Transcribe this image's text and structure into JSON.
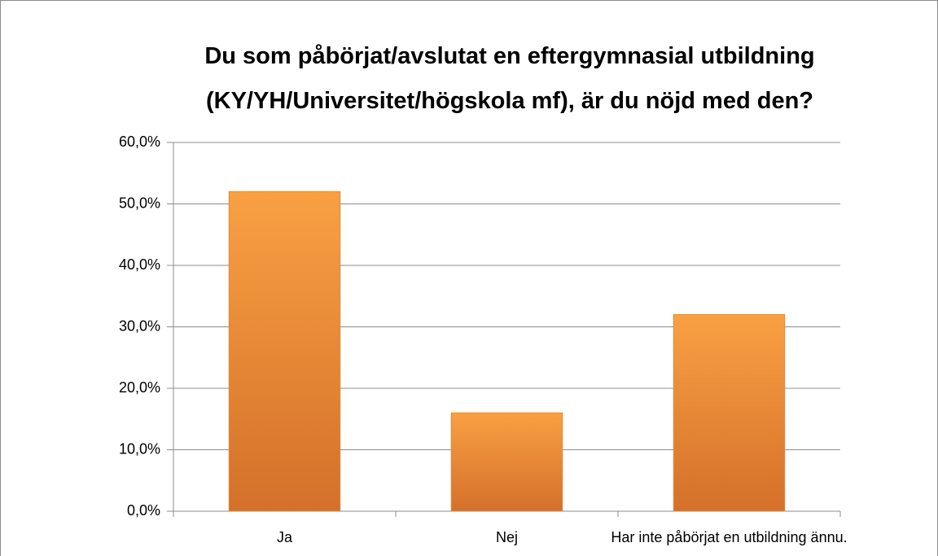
{
  "chart_data": {
    "type": "bar",
    "title": "Du som påbörjat/avslutat en eftergymnasial utbildning (KY/YH/Universitet/högskola mf), är du nöjd med den?",
    "categories": [
      "Ja",
      "Nej",
      "Har inte påbörjat en utbildning ännu."
    ],
    "values": [
      52,
      16,
      32
    ],
    "color": "#f9a043",
    "ylim": [
      0,
      60
    ],
    "yticks": [
      {
        "value": 0,
        "label": "0,0%"
      },
      {
        "value": 10,
        "label": "10,0%"
      },
      {
        "value": 20,
        "label": "20,0%"
      },
      {
        "value": 30,
        "label": "30,0%"
      },
      {
        "value": 40,
        "label": "40,0%"
      },
      {
        "value": 50,
        "label": "50,0%"
      },
      {
        "value": 60,
        "label": "60,0%"
      }
    ],
    "grid": true
  }
}
